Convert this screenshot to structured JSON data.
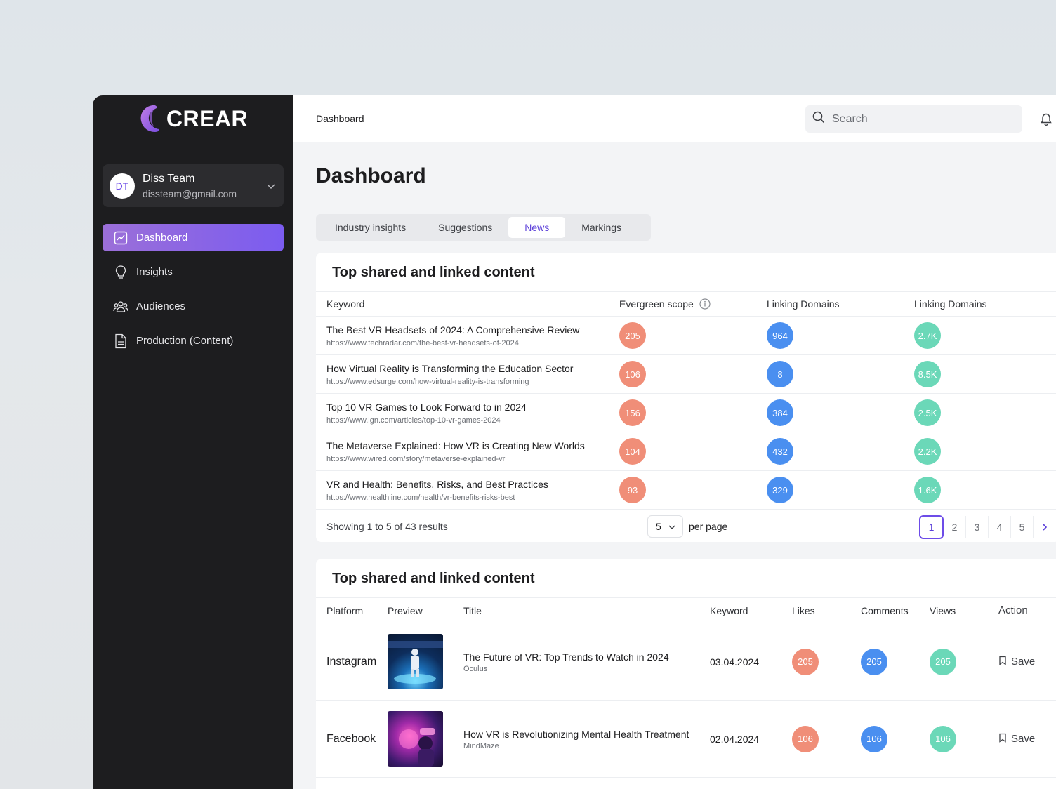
{
  "brand": {
    "name": "CREAR"
  },
  "user": {
    "initials": "DT",
    "name": "Diss Team",
    "email": "dissteam@gmail.com"
  },
  "nav": [
    {
      "label": "Dashboard",
      "icon": "chart-line-icon",
      "active": true
    },
    {
      "label": "Insights",
      "icon": "lightbulb-icon",
      "active": false
    },
    {
      "label": "Audiences",
      "icon": "users-icon",
      "active": false
    },
    {
      "label": "Production (Content)",
      "icon": "document-icon",
      "active": false
    }
  ],
  "topbar": {
    "breadcrumb": "Dashboard",
    "search_placeholder": "Search"
  },
  "page": {
    "title": "Dashboard"
  },
  "tabs": [
    {
      "label": "Industry insights",
      "active": false
    },
    {
      "label": "Suggestions",
      "active": false
    },
    {
      "label": "News",
      "active": true
    },
    {
      "label": "Markings",
      "active": false
    }
  ],
  "card1": {
    "title": "Top shared and linked content",
    "columns": [
      "Keyword",
      "Evergreen scope",
      "Linking Domains",
      "Linking Domains"
    ],
    "rows": [
      {
        "title": "The Best VR Headsets of 2024: A Comprehensive Review",
        "url": "https://www.techradar.com/the-best-vr-headsets-of-2024",
        "evergreen": "205",
        "domains": "964",
        "domains2": "2.7K"
      },
      {
        "title": "How Virtual Reality is Transforming the Education Sector",
        "url": "https://www.edsurge.com/how-virtual-reality-is-transforming",
        "evergreen": "106",
        "domains": "8",
        "domains2": "8.5K"
      },
      {
        "title": "Top 10 VR Games to Look Forward to in 2024",
        "url": "https://www.ign.com/articles/top-10-vr-games-2024",
        "evergreen": "156",
        "domains": "384",
        "domains2": "2.5K"
      },
      {
        "title": "The Metaverse Explained: How VR is Creating New Worlds",
        "url": "https://www.wired.com/story/metaverse-explained-vr",
        "evergreen": "104",
        "domains": "432",
        "domains2": "2.2K"
      },
      {
        "title": "VR and Health: Benefits, Risks, and Best Practices",
        "url": "https://www.healthline.com/health/vr-benefits-risks-best",
        "evergreen": "93",
        "domains": "329",
        "domains2": "1.6K"
      }
    ],
    "footer": {
      "showing": "Showing 1 to 5 of 43 results",
      "per_page_value": "5",
      "per_page_label": "per page"
    },
    "pages": [
      "1",
      "2",
      "3",
      "4",
      "5"
    ]
  },
  "card2": {
    "title": "Top shared and linked content",
    "columns": [
      "Platform",
      "Preview",
      "Title",
      "Keyword",
      "Likes",
      "Comments",
      "Views",
      "Action"
    ],
    "rows": [
      {
        "platform": "Instagram",
        "title": "The Future of VR: Top Trends to Watch in 2024",
        "source": "Oculus",
        "keyword": "03.04.2024",
        "likes": "205",
        "comments": "205",
        "views": "205",
        "action": "Save"
      },
      {
        "platform": "Facebook",
        "title": "How VR is Revolutionizing Mental Health Treatment",
        "source": "MindMaze",
        "keyword": "02.04.2024",
        "likes": "106",
        "comments": "106",
        "views": "106",
        "action": "Save"
      }
    ]
  },
  "colors": {
    "accent": "#6d4ce8",
    "orange": "#f08e78",
    "blue": "#4a8ff0",
    "green": "#6bd8b8",
    "sidebar": "#1d1d1f"
  }
}
